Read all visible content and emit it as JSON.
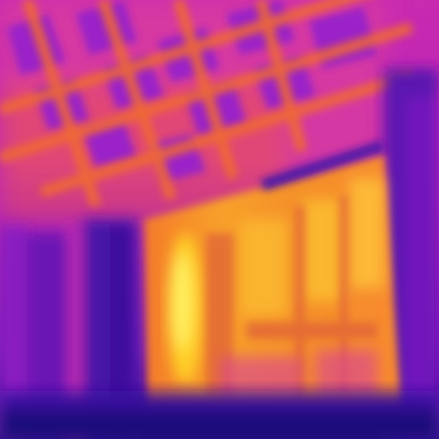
{
  "image": {
    "kind": "thermal-infrared-photo",
    "palette": [
      "#1a0a6e",
      "#3a1aa0",
      "#8a20c8",
      "#c020c0",
      "#e8309a",
      "#f05a3a",
      "#f8902a",
      "#ffc020",
      "#fff060"
    ]
  }
}
